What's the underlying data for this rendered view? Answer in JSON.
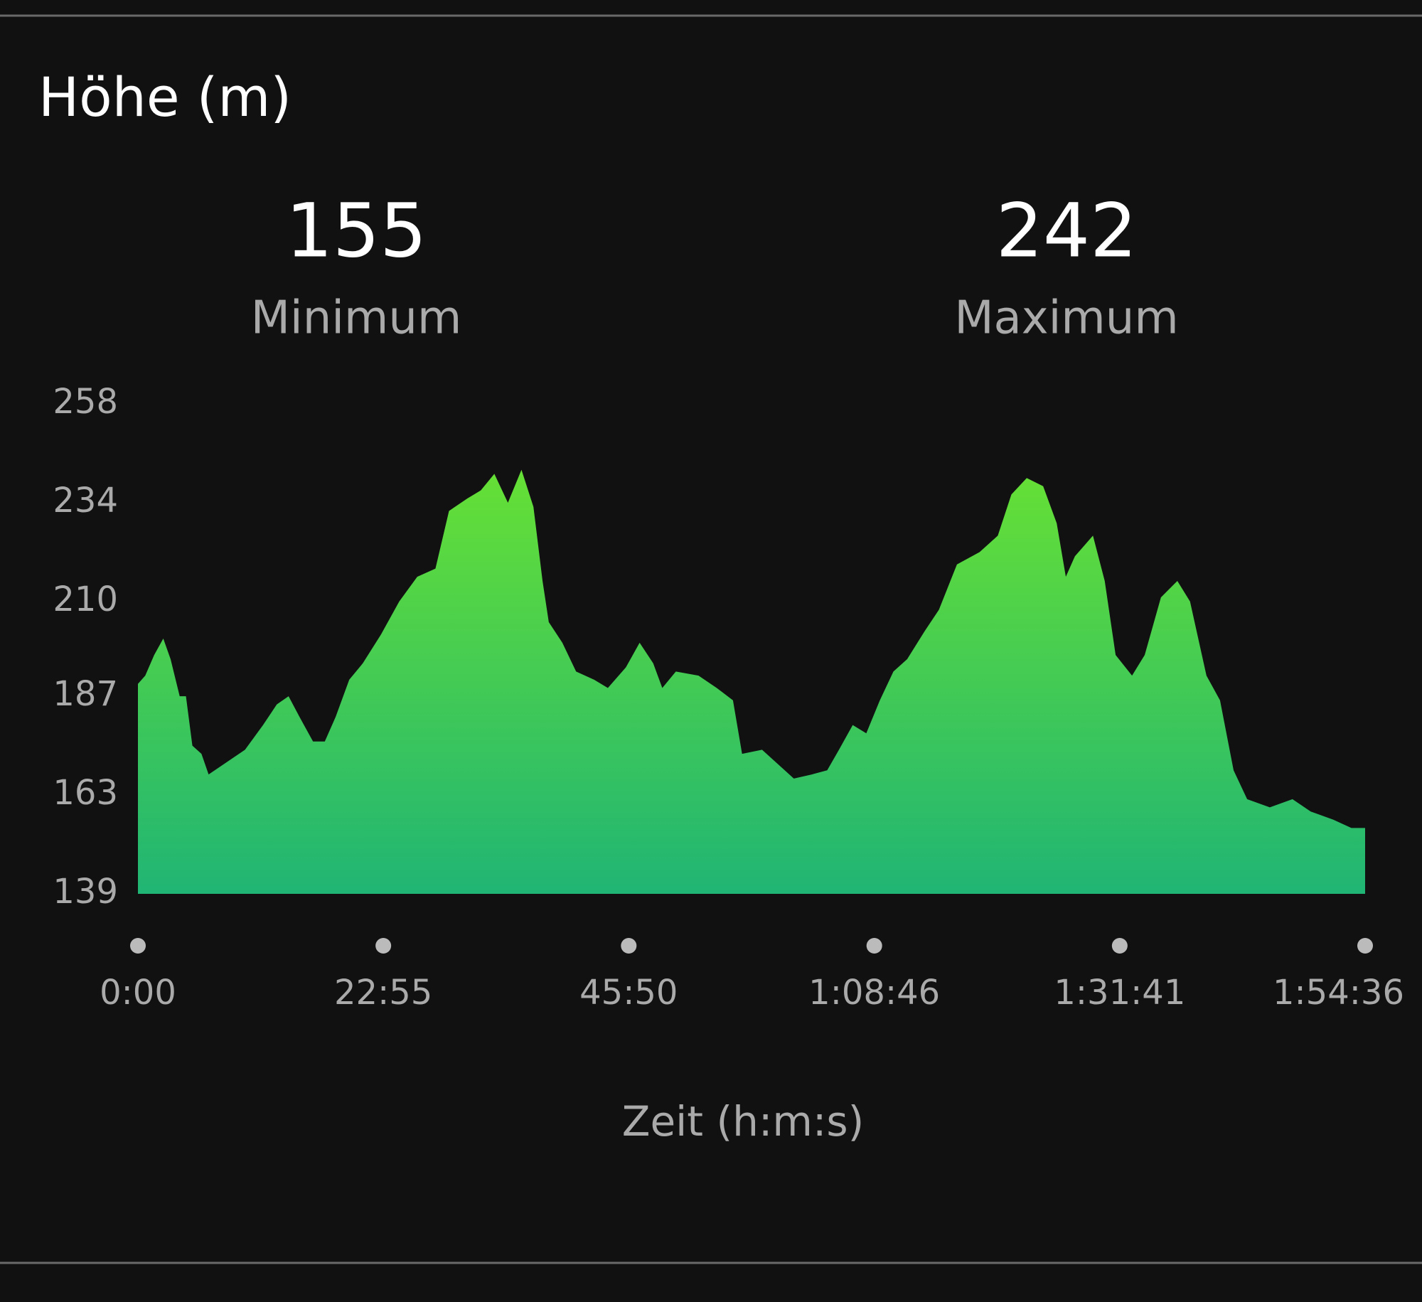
{
  "chart_data": {
    "type": "area",
    "title": "Höhe (m)",
    "stats": [
      {
        "value": 155,
        "label": "Minimum"
      },
      {
        "value": 242,
        "label": "Maximum"
      }
    ],
    "x": [
      0,
      41,
      91,
      142,
      183,
      234,
      269,
      305,
      356,
      396,
      498,
      600,
      701,
      778,
      844,
      905,
      981,
      1047,
      1108,
      1184,
      1260,
      1362,
      1464,
      1565,
      1667,
      1743,
      1845,
      1921,
      1997,
      2073,
      2149,
      2216,
      2267,
      2302,
      2378,
      2455,
      2556,
      2633,
      2734,
      2811,
      2887,
      2938,
      3014,
      3141,
      3243,
      3334,
      3385,
      3497,
      3624,
      3675,
      3776,
      3862,
      3928,
      4005,
      4081,
      4157,
      4233,
      4310,
      4411,
      4488,
      4589,
      4716,
      4818,
      4894,
      4980,
      5072,
      5148,
      5199,
      5250,
      5351,
      5417,
      5478,
      5570,
      5641,
      5732,
      5824,
      5895,
      5987,
      6063,
      6139,
      6215,
      6342,
      6469,
      6571,
      6698,
      6799,
      6876
    ],
    "values": [
      190,
      192,
      197,
      201,
      196,
      187,
      187,
      175,
      173,
      168,
      171,
      174,
      180,
      185,
      187,
      182,
      176,
      176,
      182,
      191,
      195,
      202,
      210,
      216,
      218,
      232,
      235,
      237,
      241,
      234,
      242,
      233,
      215,
      205,
      200,
      193,
      191,
      189,
      194,
      200,
      195,
      189,
      193,
      192,
      189,
      186,
      173,
      174,
      169,
      167,
      168,
      169,
      174,
      180,
      178,
      186,
      193,
      196,
      203,
      208,
      219,
      222,
      226,
      236,
      240,
      238,
      229,
      216,
      221,
      226,
      215,
      197,
      192,
      197,
      211,
      215,
      210,
      192,
      186,
      169,
      162,
      160,
      162,
      159,
      157,
      155,
      155
    ],
    "colors": [
      "#66e035",
      "#20b574"
    ],
    "xlabel": "Zeit (h:m:s)",
    "xlim": [
      0,
      6876
    ],
    "xticks": [
      {
        "value": 0,
        "label": "0:00"
      },
      {
        "value": 1375,
        "label": "22:55"
      },
      {
        "value": 2750,
        "label": "45:50"
      },
      {
        "value": 4126,
        "label": "1:08:46"
      },
      {
        "value": 5501,
        "label": "1:31:41"
      },
      {
        "value": 6876,
        "label": "1:54:36"
      }
    ],
    "ylim": [
      139,
      258
    ],
    "yticks": [
      258,
      234,
      210,
      187,
      163,
      139
    ]
  }
}
